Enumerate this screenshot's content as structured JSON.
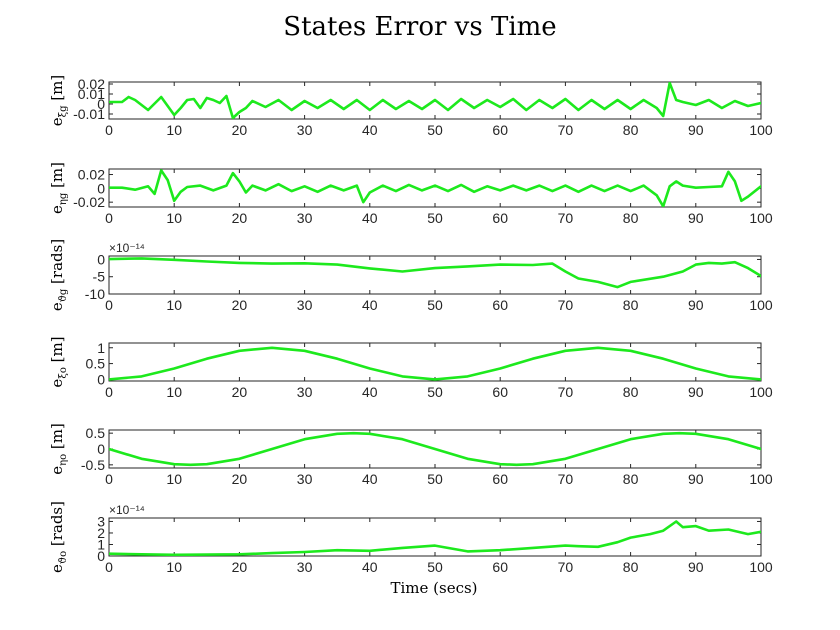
{
  "figure": {
    "title": "States Error vs Time",
    "xlabel": "Time (secs)"
  },
  "colors": {
    "series": "#1de91d",
    "axes": "#262626",
    "background": "#ffffff"
  },
  "chart_data": [
    {
      "type": "line",
      "ylabel": "e_ξg [m]",
      "ylabel_main": "e",
      "ylabel_sub": "ξg",
      "ylabel_unit": "[m]",
      "xlim": [
        0,
        100
      ],
      "ylim": [
        -0.015,
        0.022
      ],
      "xticks": [
        "0",
        "10",
        "20",
        "30",
        "40",
        "50",
        "60",
        "70",
        "80",
        "90",
        "100"
      ],
      "yticks": [
        "0.02",
        "0.01",
        "0",
        "-0.01"
      ],
      "ytick_values": [
        0.02,
        0.01,
        0,
        -0.01
      ],
      "exponent": "",
      "grid": false,
      "series": [
        {
          "x": [
            0,
            2,
            3,
            4,
            6,
            8,
            10,
            11,
            12,
            13,
            14,
            15,
            16,
            17,
            18,
            19,
            20,
            21,
            22,
            24,
            26,
            28,
            30,
            32,
            34,
            36,
            38,
            40,
            42,
            44,
            46,
            48,
            50,
            52,
            54,
            56,
            58,
            60,
            62,
            64,
            66,
            68,
            70,
            72,
            74,
            76,
            78,
            80,
            82,
            84,
            85,
            86,
            87,
            88,
            90,
            92,
            94,
            96,
            98,
            100
          ],
          "values": [
            0.002,
            0.002,
            0.007,
            0.004,
            -0.006,
            0.007,
            -0.011,
            -0.004,
            0.004,
            0.005,
            -0.004,
            0.006,
            0.004,
            0.001,
            0.008,
            -0.014,
            -0.008,
            -0.004,
            0.003,
            -0.003,
            0.004,
            -0.006,
            0.003,
            -0.004,
            0.004,
            -0.005,
            0.004,
            -0.006,
            0.004,
            -0.005,
            0.003,
            -0.005,
            0.004,
            -0.006,
            0.005,
            -0.004,
            0.004,
            -0.003,
            0.005,
            -0.006,
            0.004,
            -0.004,
            0.005,
            -0.006,
            0.004,
            -0.005,
            0.004,
            -0.005,
            0.004,
            -0.004,
            -0.012,
            0.021,
            0.004,
            0.002,
            -0.001,
            0.004,
            -0.004,
            0.003,
            -0.002,
            0.001
          ]
        }
      ]
    },
    {
      "type": "line",
      "ylabel": "e_ηg [m]",
      "ylabel_main": "e",
      "ylabel_sub": "ηg",
      "ylabel_unit": "[m]",
      "xlim": [
        0,
        100
      ],
      "ylim": [
        -0.027,
        0.028
      ],
      "xticks": [
        "0",
        "10",
        "20",
        "30",
        "40",
        "50",
        "60",
        "70",
        "80",
        "90",
        "100"
      ],
      "yticks": [
        "0.02",
        "0",
        "-0.02"
      ],
      "ytick_values": [
        0.02,
        0,
        -0.02
      ],
      "exponent": "",
      "grid": false,
      "series": [
        {
          "x": [
            0,
            2,
            4,
            6,
            7,
            8,
            9,
            10,
            11,
            12,
            14,
            16,
            18,
            19,
            20,
            21,
            22,
            24,
            26,
            28,
            30,
            32,
            34,
            36,
            38,
            39,
            40,
            42,
            44,
            46,
            48,
            50,
            52,
            54,
            56,
            58,
            60,
            62,
            64,
            66,
            68,
            70,
            72,
            74,
            76,
            78,
            80,
            82,
            84,
            85,
            86,
            87,
            88,
            90,
            92,
            94,
            95,
            96,
            97,
            98,
            100
          ],
          "values": [
            0.001,
            0.001,
            -0.002,
            0.003,
            -0.008,
            0.026,
            0.012,
            -0.018,
            -0.005,
            0.002,
            0.004,
            -0.003,
            0.004,
            0.022,
            0.01,
            -0.006,
            0.004,
            -0.003,
            0.006,
            -0.004,
            0.003,
            -0.005,
            0.004,
            -0.003,
            0.004,
            -0.02,
            -0.006,
            0.004,
            -0.004,
            0.005,
            -0.003,
            0.004,
            -0.004,
            0.005,
            -0.005,
            0.003,
            -0.003,
            0.004,
            -0.003,
            0.004,
            -0.004,
            0.004,
            -0.005,
            0.004,
            -0.004,
            0.004,
            -0.004,
            0.004,
            -0.01,
            -0.026,
            0.003,
            0.01,
            0.004,
            0.001,
            0.002,
            0.003,
            0.024,
            0.01,
            -0.018,
            -0.012,
            0.003
          ]
        }
      ]
    },
    {
      "type": "line",
      "ylabel": "e_ϑg [rads]",
      "ylabel_main": "e",
      "ylabel_sub": "ϑg",
      "ylabel_unit": "[rads]",
      "xlim": [
        0,
        100
      ],
      "ylim": [
        -10,
        1
      ],
      "xticks": [
        "0",
        "10",
        "20",
        "30",
        "40",
        "50",
        "60",
        "70",
        "80",
        "90",
        "100"
      ],
      "yticks": [
        "0",
        "-5",
        "-10"
      ],
      "ytick_values": [
        0,
        -5,
        -10
      ],
      "exponent": "×10⁻¹⁴",
      "grid": false,
      "series": [
        {
          "x": [
            0,
            5,
            10,
            15,
            20,
            25,
            30,
            35,
            40,
            45,
            50,
            55,
            60,
            65,
            68,
            70,
            72,
            75,
            78,
            80,
            85,
            88,
            90,
            92,
            94,
            96,
            98,
            100
          ],
          "values": [
            0.1,
            0.3,
            -0.1,
            -0.6,
            -1.0,
            -1.2,
            -1.1,
            -1.5,
            -2.6,
            -3.5,
            -2.5,
            -2.0,
            -1.5,
            -1.6,
            -1.2,
            -3.5,
            -5.5,
            -6.5,
            -8.0,
            -6.5,
            -5.0,
            -3.5,
            -1.5,
            -1.0,
            -1.2,
            -0.8,
            -2.5,
            -4.8
          ]
        }
      ]
    },
    {
      "type": "line",
      "ylabel": "e_ξo [m]",
      "ylabel_main": "e",
      "ylabel_sub": "ξo",
      "ylabel_unit": "[m]",
      "xlim": [
        0,
        100
      ],
      "ylim": [
        -0.05,
        1.15
      ],
      "xticks": [
        "0",
        "10",
        "20",
        "30",
        "40",
        "50",
        "60",
        "70",
        "80",
        "90",
        "100"
      ],
      "yticks": [
        "1",
        "0.5",
        "0"
      ],
      "ytick_values": [
        1,
        0.5,
        0
      ],
      "exponent": "",
      "grid": false,
      "series": [
        {
          "x": [
            0,
            5,
            10,
            15,
            20,
            25,
            30,
            35,
            40,
            45,
            50,
            55,
            60,
            65,
            70,
            75,
            80,
            85,
            90,
            95,
            100
          ],
          "values": [
            0,
            0.095,
            0.345,
            0.655,
            0.905,
            1.0,
            0.905,
            0.655,
            0.345,
            0.095,
            0,
            0.095,
            0.345,
            0.655,
            0.905,
            1.0,
            0.905,
            0.655,
            0.345,
            0.095,
            0
          ]
        }
      ]
    },
    {
      "type": "line",
      "ylabel": "e_ηo [m]",
      "ylabel_main": "e",
      "ylabel_sub": "ηo",
      "ylabel_unit": "[m]",
      "xlim": [
        0,
        100
      ],
      "ylim": [
        -0.6,
        0.6
      ],
      "xticks": [
        "0",
        "10",
        "20",
        "30",
        "40",
        "50",
        "60",
        "70",
        "80",
        "90",
        "100"
      ],
      "yticks": [
        "0.5",
        "0",
        "-0.5"
      ],
      "ytick_values": [
        0.5,
        0,
        -0.5
      ],
      "exponent": "",
      "grid": false,
      "series": [
        {
          "x": [
            0,
            5,
            10,
            12.5,
            15,
            20,
            25,
            30,
            35,
            37.5,
            40,
            45,
            50,
            55,
            60,
            62.5,
            65,
            70,
            75,
            80,
            85,
            87.5,
            90,
            95,
            100
          ],
          "values": [
            0,
            -0.31,
            -0.48,
            -0.5,
            -0.48,
            -0.31,
            0,
            0.31,
            0.48,
            0.5,
            0.48,
            0.31,
            0,
            -0.31,
            -0.48,
            -0.5,
            -0.48,
            -0.31,
            0,
            0.31,
            0.48,
            0.5,
            0.48,
            0.31,
            0
          ]
        }
      ]
    },
    {
      "type": "line",
      "ylabel": "e_ϑo [rads]",
      "ylabel_main": "e",
      "ylabel_sub": "ϑo",
      "ylabel_unit": "[rads]",
      "xlim": [
        0,
        100
      ],
      "ylim": [
        0,
        3.3
      ],
      "xticks": [
        "0",
        "10",
        "20",
        "30",
        "40",
        "50",
        "60",
        "70",
        "80",
        "90",
        "100"
      ],
      "yticks": [
        "3",
        "2",
        "1",
        "0"
      ],
      "ytick_values": [
        3,
        2,
        1,
        0
      ],
      "exponent": "×10⁻¹⁴",
      "grid": false,
      "series": [
        {
          "x": [
            0,
            5,
            10,
            15,
            20,
            25,
            30,
            35,
            40,
            45,
            50,
            55,
            60,
            65,
            70,
            72,
            75,
            78,
            80,
            83,
            85,
            87,
            88,
            90,
            92,
            95,
            98,
            100
          ],
          "values": [
            0.2,
            0.15,
            0.1,
            0.12,
            0.15,
            0.25,
            0.35,
            0.5,
            0.45,
            0.7,
            0.9,
            0.4,
            0.5,
            0.7,
            0.9,
            0.85,
            0.8,
            1.2,
            1.6,
            1.9,
            2.2,
            3.0,
            2.5,
            2.6,
            2.2,
            2.3,
            1.9,
            2.1
          ]
        }
      ]
    }
  ]
}
